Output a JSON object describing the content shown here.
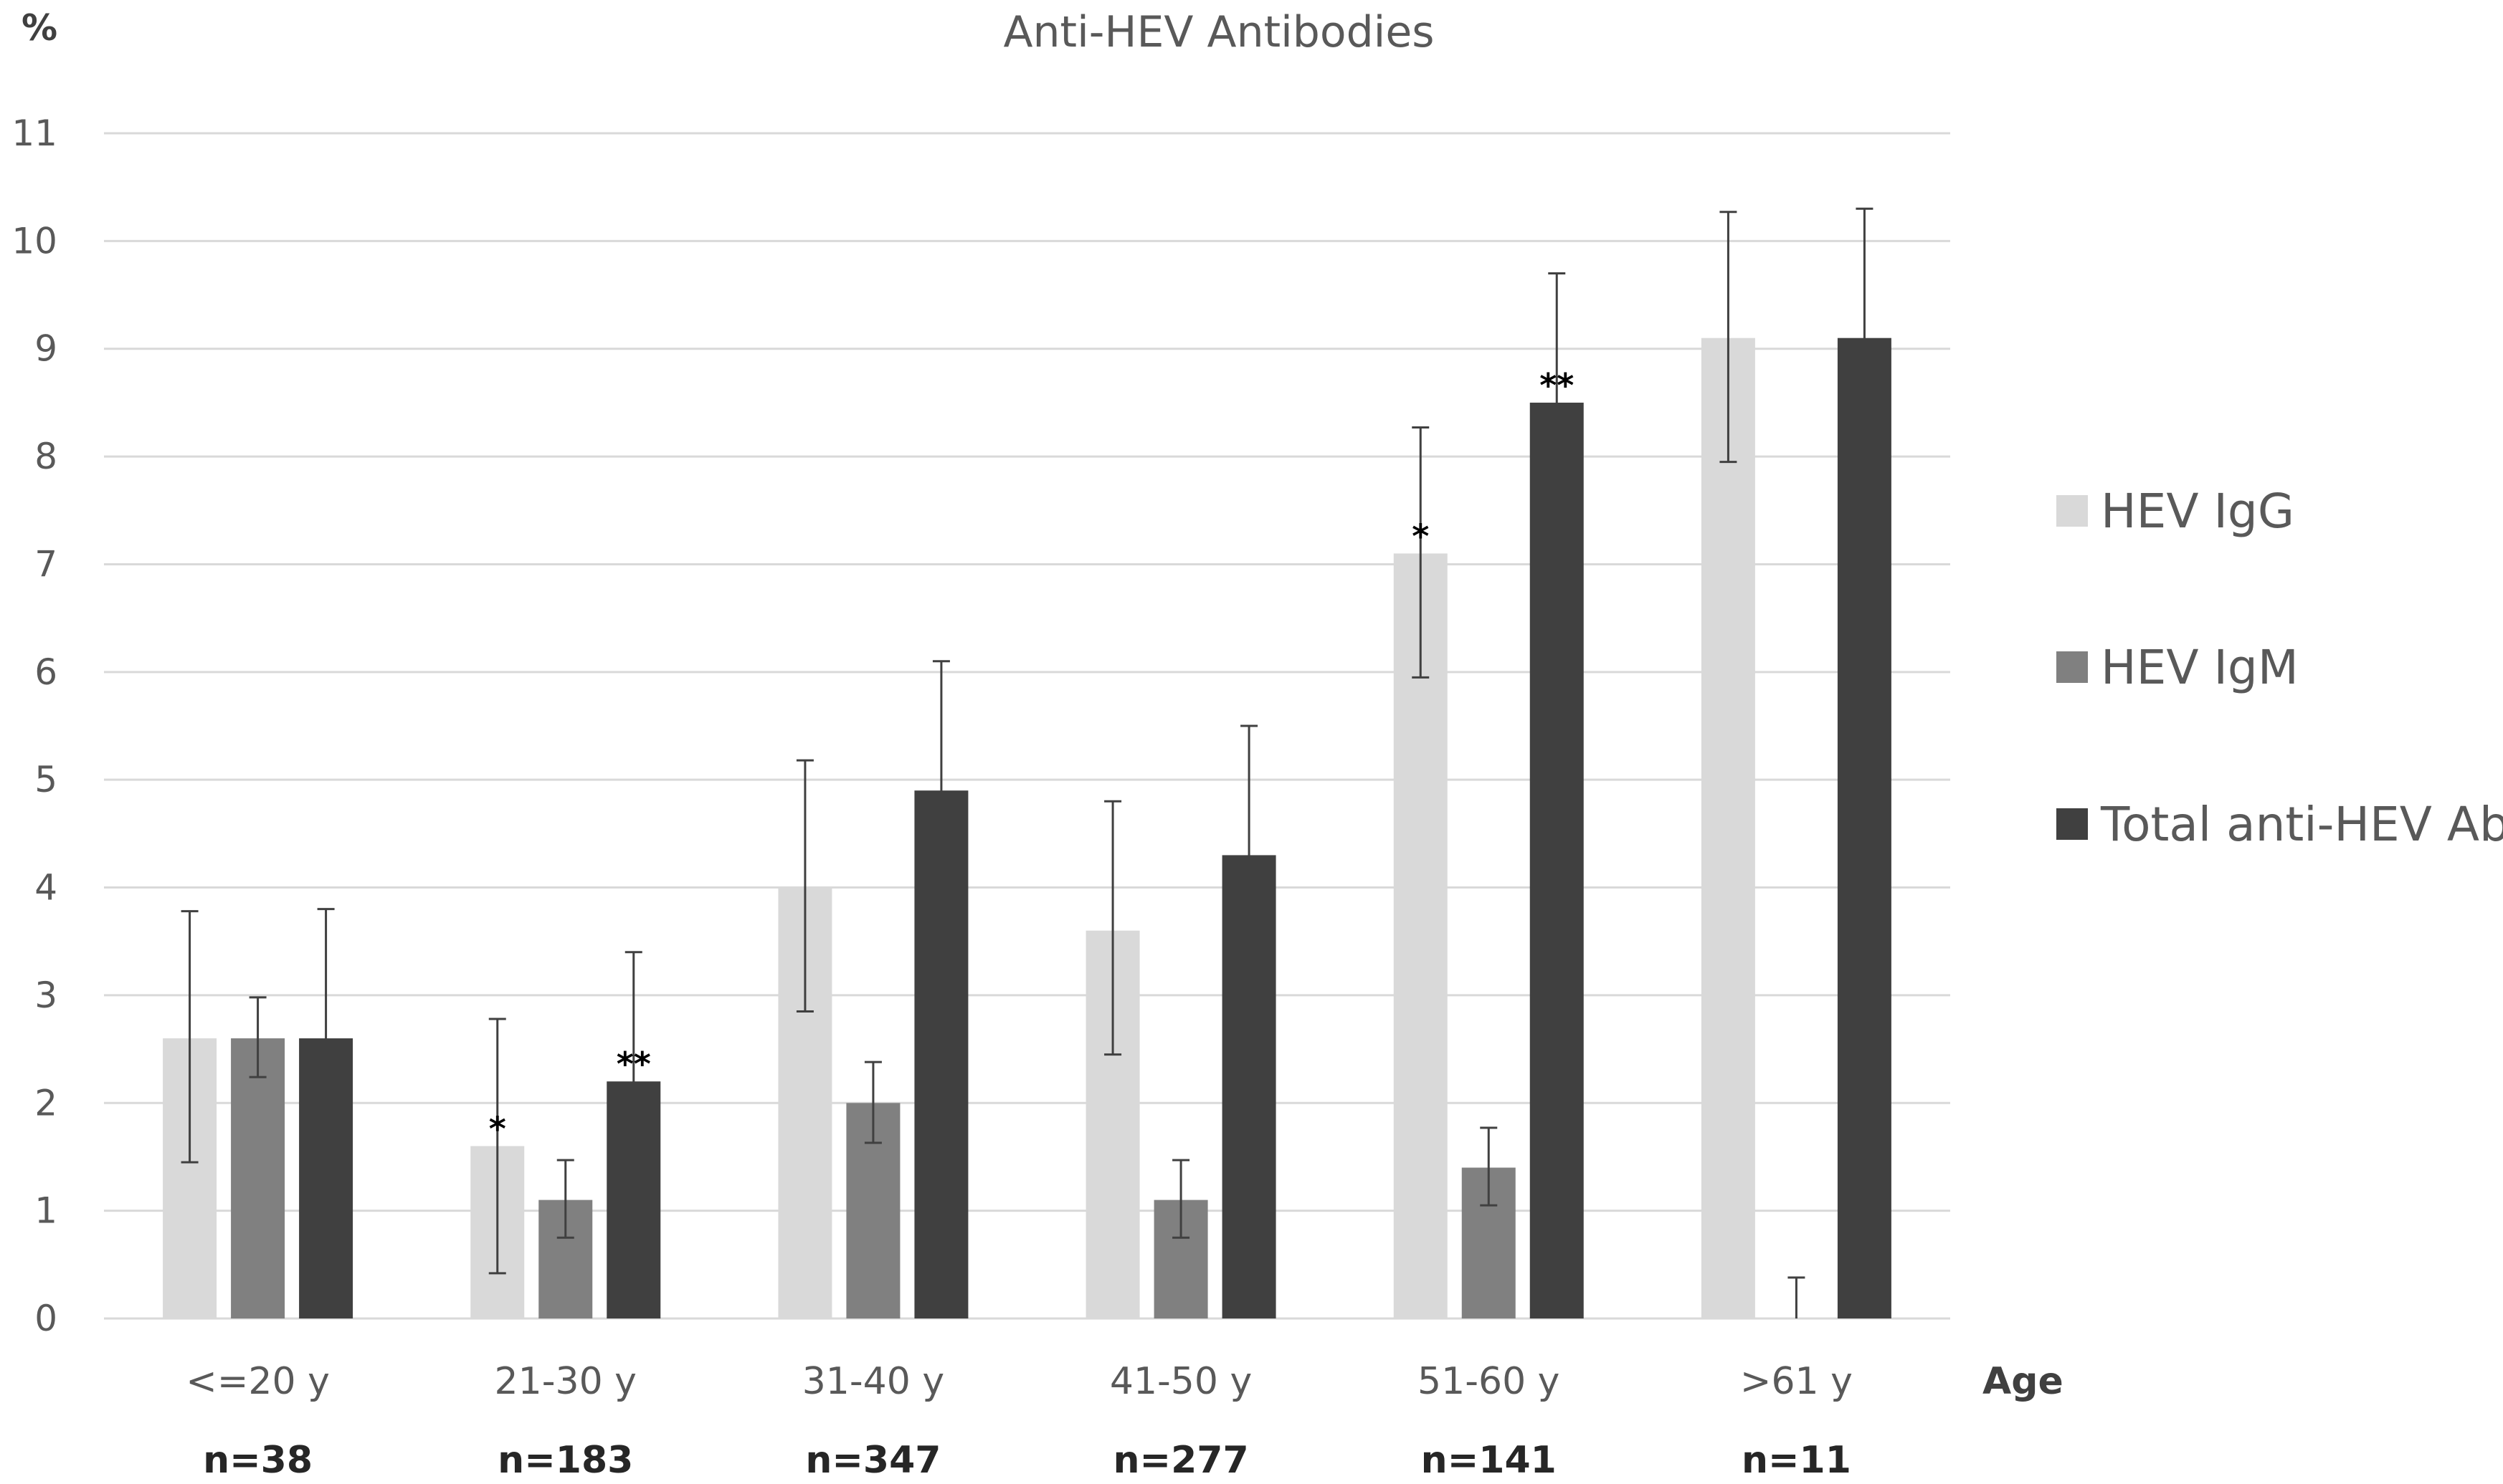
{
  "chart_data": {
    "type": "bar",
    "title": "Anti-HEV Antibodies",
    "ylabel": "%",
    "xlabel": "Age",
    "ylim": [
      0,
      11
    ],
    "yticks": [
      0,
      1,
      2,
      3,
      4,
      5,
      6,
      7,
      8,
      9,
      10,
      11
    ],
    "grid": true,
    "legend_position": "right",
    "categories": [
      "<=20 y",
      "21-30 y",
      "31-40 y",
      "41-50 y",
      "51-60 y",
      ">61 y"
    ],
    "sample_sizes": [
      "n=38",
      "n=183",
      "n=347",
      "n=277",
      "n=141",
      "n=11"
    ],
    "series": [
      {
        "name": "HEV IgG",
        "color": "#d9d9d9",
        "values": [
          2.6,
          1.6,
          4.0,
          3.6,
          7.1,
          9.1
        ],
        "error_low": [
          1.45,
          0.42,
          2.85,
          2.45,
          5.95,
          7.95
        ],
        "error_high": [
          3.78,
          2.78,
          5.18,
          4.8,
          8.27,
          10.27
        ],
        "annotations": [
          "",
          "*",
          "",
          "",
          "*",
          ""
        ]
      },
      {
        "name": "HEV IgM",
        "color": "#808080",
        "values": [
          2.6,
          1.1,
          2.0,
          1.1,
          1.4,
          0.0
        ],
        "error_low": [
          2.24,
          0.75,
          1.63,
          0.75,
          1.05,
          0.0
        ],
        "error_high": [
          2.98,
          1.47,
          2.38,
          1.47,
          1.77,
          0.38
        ],
        "annotations": [
          "",
          "",
          "",
          "",
          "",
          ""
        ]
      },
      {
        "name": "Total anti-HEV Ab",
        "color": "#404040",
        "values": [
          2.6,
          2.2,
          4.9,
          4.3,
          8.5,
          9.1
        ],
        "error_low": [
          1.42,
          1.02,
          3.72,
          3.12,
          7.32,
          7.92
        ],
        "error_high": [
          3.8,
          3.4,
          6.1,
          5.5,
          9.7,
          10.3
        ],
        "annotations": [
          "",
          "**",
          "",
          "",
          "**",
          ""
        ]
      }
    ]
  }
}
